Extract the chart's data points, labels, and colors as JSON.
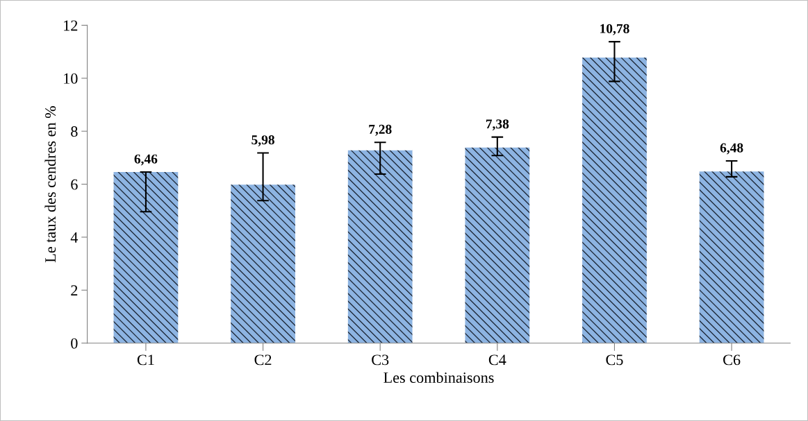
{
  "chart_data": {
    "type": "bar",
    "xlabel": "Les combinaisons",
    "ylabel": "Le taux des cendres en %",
    "categories": [
      "C1",
      "C2",
      "C3",
      "C4",
      "C5",
      "C6"
    ],
    "values": [
      6.46,
      5.98,
      7.28,
      7.38,
      10.78,
      6.48
    ],
    "errors": [
      [
        4.96,
        6.46
      ],
      [
        5.38,
        7.18
      ],
      [
        6.38,
        7.58
      ],
      [
        7.08,
        7.78
      ],
      [
        9.88,
        11.38
      ],
      [
        6.28,
        6.88
      ]
    ],
    "value_labels": [
      "6,46",
      "5,98",
      "7,28",
      "7,38",
      "10,78",
      "6,48"
    ],
    "color": "#8db4e2",
    "ylim": [
      0,
      12
    ],
    "yticks": [
      0,
      2,
      4,
      6,
      8,
      10,
      12
    ],
    "grid": false,
    "legend": false
  }
}
